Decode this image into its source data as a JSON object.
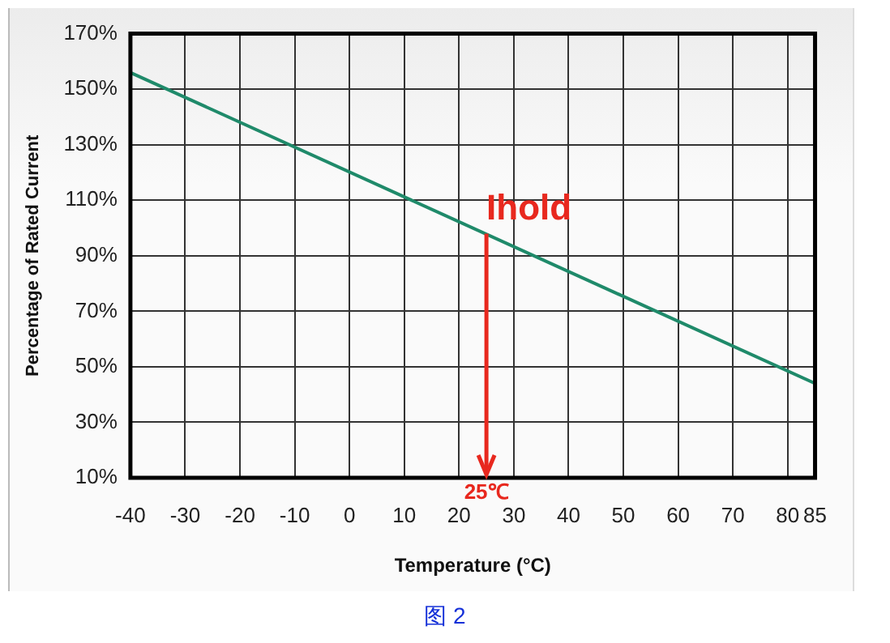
{
  "chart_data": {
    "type": "line",
    "xlabel": "Temperature (°C)",
    "ylabel": "Percentage of Rated Current",
    "x": [
      -40,
      85
    ],
    "series": [
      {
        "color": "#1f8a6a",
        "values": [
          156,
          44
        ]
      }
    ],
    "xlim": [
      -40,
      85
    ],
    "xticks": [
      -40,
      -30,
      -20,
      -10,
      0,
      10,
      20,
      30,
      40,
      50,
      60,
      70,
      80,
      85
    ],
    "ylim": [
      10,
      170
    ],
    "yticks": [
      {
        "value": 10,
        "label": "10%"
      },
      {
        "value": 30,
        "label": "30%"
      },
      {
        "value": 50,
        "label": "50%"
      },
      {
        "value": 70,
        "label": "70%"
      },
      {
        "value": 90,
        "label": "90%"
      },
      {
        "value": 110,
        "label": "110%"
      },
      {
        "value": 130,
        "label": "130%"
      },
      {
        "value": 150,
        "label": "150%"
      },
      {
        "value": 170,
        "label": "170%"
      }
    ],
    "grid": true,
    "legend": false,
    "marker": "none",
    "line_style": "solid",
    "ref_lines": [
      {
        "axis": "x",
        "value": 25,
        "label": "25℃",
        "color": "#e8281e"
      }
    ],
    "annotations": [
      {
        "text": "Ihold",
        "x": 25,
        "y": 98
      },
      "图 2"
    ]
  }
}
